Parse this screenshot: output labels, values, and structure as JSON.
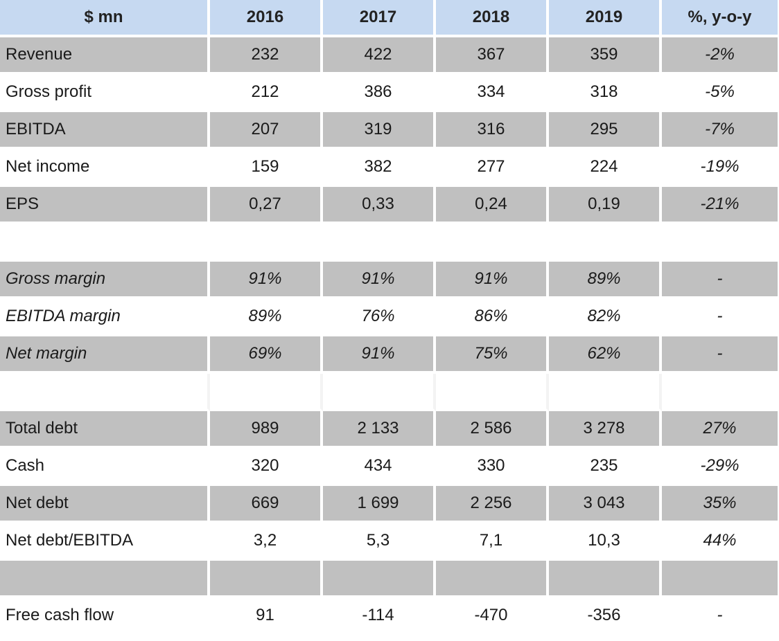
{
  "table": {
    "headers": [
      "$ mn",
      "2016",
      "2017",
      "2018",
      "2019",
      "%, y-o-y"
    ],
    "rows": [
      {
        "label": "Revenue",
        "values": [
          "232",
          "422",
          "367",
          "359",
          "-2%"
        ],
        "style": "shade"
      },
      {
        "label": "Gross profit",
        "values": [
          "212",
          "386",
          "334",
          "318",
          "-5%"
        ],
        "style": "plain"
      },
      {
        "label": "EBITDA",
        "values": [
          "207",
          "319",
          "316",
          "295",
          "-7%"
        ],
        "style": "shade"
      },
      {
        "label": "Net income",
        "values": [
          "159",
          "382",
          "277",
          "224",
          "-19%"
        ],
        "style": "plain"
      },
      {
        "label": "EPS",
        "values": [
          "0,27",
          "0,33",
          "0,24",
          "0,19",
          "-21%"
        ],
        "style": "shade"
      },
      {
        "label": "",
        "values": [
          "",
          "",
          "",
          "",
          ""
        ],
        "style": "empty"
      },
      {
        "label": "Gross margin",
        "values": [
          "91%",
          "91%",
          "91%",
          "89%",
          "-"
        ],
        "style": "shade-italic"
      },
      {
        "label": "EBITDA margin",
        "values": [
          "89%",
          "76%",
          "86%",
          "82%",
          "-"
        ],
        "style": "plain-italic"
      },
      {
        "label": "Net margin",
        "values": [
          "69%",
          "91%",
          "75%",
          "62%",
          "-"
        ],
        "style": "shade-italic"
      },
      {
        "label": "",
        "values": [
          "",
          "",
          "",
          "",
          ""
        ],
        "style": "empty-light"
      },
      {
        "label": "Total debt",
        "values": [
          "989",
          "2 133",
          "2 586",
          "3 278",
          "27%"
        ],
        "style": "shade"
      },
      {
        "label": "Cash",
        "values": [
          "320",
          "434",
          "330",
          "235",
          "-29%"
        ],
        "style": "plain"
      },
      {
        "label": "Net debt",
        "values": [
          "669",
          "1 699",
          "2 256",
          "3 043",
          "35%"
        ],
        "style": "shade"
      },
      {
        "label": "Net debt/EBITDA",
        "values": [
          "3,2",
          "5,3",
          "7,1",
          "10,3",
          "44%"
        ],
        "style": "plain"
      },
      {
        "label": "",
        "values": [
          "",
          "",
          "",
          "",
          ""
        ],
        "style": "shade"
      },
      {
        "label": "Free cash flow",
        "values": [
          "91",
          "-114",
          "-470",
          "-356",
          "-"
        ],
        "style": "plain"
      }
    ]
  },
  "colors": {
    "header_bg": "#c6d9f1",
    "shade_bg": "#c0c0c0",
    "plain_bg": "#ffffff"
  }
}
